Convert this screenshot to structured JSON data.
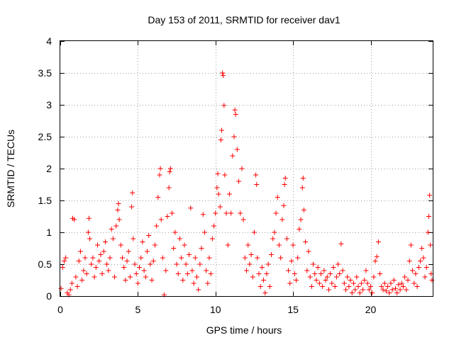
{
  "chart_data": {
    "type": "scatter",
    "title": "Day 153 of 2011, SRMTID for receiver dav1",
    "xlabel": "GPS time / hours",
    "ylabel": "SRMTID / TECUs",
    "xlim": [
      0,
      24
    ],
    "ylim": [
      0,
      4
    ],
    "xticks": [
      0,
      5,
      10,
      15,
      20
    ],
    "xtick_labels": [
      "0",
      "5",
      "10",
      "15",
      "20"
    ],
    "yticks": [
      0,
      0.5,
      1,
      1.5,
      2,
      2.5,
      3,
      3.5,
      4
    ],
    "ytick_labels": [
      "0",
      "0.5",
      "1",
      "1.5",
      "2",
      "2.5",
      "3",
      "3.5",
      "4"
    ],
    "grid": true,
    "marker": "+",
    "color": "#ff0000",
    "series": [
      {
        "name": "SRMTID",
        "points": [
          [
            0.05,
            0.12
          ],
          [
            0.15,
            0.45
          ],
          [
            0.25,
            0.55
          ],
          [
            0.35,
            0.6
          ],
          [
            0.45,
            0.05
          ],
          [
            0.55,
            0.02
          ],
          [
            0.65,
            0.1
          ],
          [
            0.75,
            0.2
          ],
          [
            0.8,
            1.22
          ],
          [
            0.9,
            1.2
          ],
          [
            1.0,
            0.3
          ],
          [
            1.1,
            0.15
          ],
          [
            1.2,
            0.55
          ],
          [
            1.3,
            0.7
          ],
          [
            1.4,
            0.25
          ],
          [
            1.5,
            0.4
          ],
          [
            1.6,
            0.6
          ],
          [
            1.7,
            0.35
          ],
          [
            1.8,
            1.0
          ],
          [
            1.85,
            1.22
          ],
          [
            1.9,
            0.9
          ],
          [
            2.0,
            0.5
          ],
          [
            2.1,
            0.6
          ],
          [
            2.2,
            0.3
          ],
          [
            2.3,
            0.45
          ],
          [
            2.4,
            0.8
          ],
          [
            2.5,
            0.55
          ],
          [
            2.6,
            0.65
          ],
          [
            2.7,
            0.35
          ],
          [
            2.8,
            0.7
          ],
          [
            2.9,
            0.85
          ],
          [
            3.0,
            0.5
          ],
          [
            3.1,
            0.4
          ],
          [
            3.2,
            0.6
          ],
          [
            3.3,
            1.05
          ],
          [
            3.4,
            0.9
          ],
          [
            3.5,
            0.3
          ],
          [
            3.6,
            1.1
          ],
          [
            3.7,
            1.35
          ],
          [
            3.75,
            1.45
          ],
          [
            3.8,
            1.2
          ],
          [
            3.9,
            0.8
          ],
          [
            4.0,
            0.6
          ],
          [
            4.1,
            0.45
          ],
          [
            4.2,
            0.25
          ],
          [
            4.3,
            0.55
          ],
          [
            4.4,
            0.7
          ],
          [
            4.5,
            0.3
          ],
          [
            4.6,
            1.4
          ],
          [
            4.65,
            1.62
          ],
          [
            4.7,
            0.9
          ],
          [
            4.8,
            0.5
          ],
          [
            4.9,
            0.35
          ],
          [
            5.0,
            0.2
          ],
          [
            5.1,
            0.45
          ],
          [
            5.2,
            0.6
          ],
          [
            5.3,
            0.85
          ],
          [
            5.4,
            0.4
          ],
          [
            5.5,
            0.3
          ],
          [
            5.6,
            0.7
          ],
          [
            5.7,
            0.95
          ],
          [
            5.8,
            0.5
          ],
          [
            5.9,
            0.25
          ],
          [
            6.0,
            0.55
          ],
          [
            6.1,
            0.8
          ],
          [
            6.2,
            1.1
          ],
          [
            6.3,
            1.55
          ],
          [
            6.4,
            1.9
          ],
          [
            6.45,
            2.0
          ],
          [
            6.5,
            1.2
          ],
          [
            6.6,
            0.6
          ],
          [
            6.7,
            0.02
          ],
          [
            6.8,
            0.4
          ],
          [
            6.9,
            1.25
          ],
          [
            7.0,
            1.7
          ],
          [
            7.05,
            1.95
          ],
          [
            7.1,
            2.0
          ],
          [
            7.2,
            1.3
          ],
          [
            7.3,
            0.75
          ],
          [
            7.4,
            1.0
          ],
          [
            7.5,
            0.5
          ],
          [
            7.6,
            0.35
          ],
          [
            7.7,
            0.9
          ],
          [
            7.8,
            0.6
          ],
          [
            7.9,
            0.25
          ],
          [
            8.0,
            0.8
          ],
          [
            8.1,
            0.5
          ],
          [
            8.2,
            0.35
          ],
          [
            8.3,
            0.65
          ],
          [
            8.4,
            1.38
          ],
          [
            8.5,
            0.4
          ],
          [
            8.6,
            0.2
          ],
          [
            8.7,
            0.6
          ],
          [
            8.8,
            0.3
          ],
          [
            8.9,
            0.1
          ],
          [
            9.0,
            0.5
          ],
          [
            9.1,
            0.75
          ],
          [
            9.2,
            1.28
          ],
          [
            9.3,
            1.0
          ],
          [
            9.4,
            0.4
          ],
          [
            9.5,
            0.2
          ],
          [
            9.6,
            0.6
          ],
          [
            9.7,
            0.35
          ],
          [
            9.8,
            0.9
          ],
          [
            9.9,
            1.1
          ],
          [
            10.0,
            1.3
          ],
          [
            10.1,
            1.7
          ],
          [
            10.15,
            1.92
          ],
          [
            10.2,
            1.6
          ],
          [
            10.3,
            1.4
          ],
          [
            10.35,
            2.45
          ],
          [
            10.4,
            2.6
          ],
          [
            10.45,
            3.5
          ],
          [
            10.5,
            3.46
          ],
          [
            10.55,
            2.99
          ],
          [
            10.6,
            1.9
          ],
          [
            10.7,
            1.3
          ],
          [
            10.8,
            0.8
          ],
          [
            10.9,
            1.6
          ],
          [
            11.0,
            1.3
          ],
          [
            11.1,
            2.2
          ],
          [
            11.2,
            2.5
          ],
          [
            11.25,
            2.92
          ],
          [
            11.3,
            2.85
          ],
          [
            11.4,
            2.3
          ],
          [
            11.5,
            1.8
          ],
          [
            11.6,
            1.3
          ],
          [
            11.7,
            2.0
          ],
          [
            11.8,
            1.2
          ],
          [
            11.9,
            0.6
          ],
          [
            12.0,
            0.4
          ],
          [
            12.1,
            0.8
          ],
          [
            12.2,
            0.5
          ],
          [
            12.3,
            0.65
          ],
          [
            12.4,
            0.3
          ],
          [
            12.5,
            1.0
          ],
          [
            12.6,
            1.9
          ],
          [
            12.65,
            1.75
          ],
          [
            12.7,
            0.6
          ],
          [
            12.8,
            0.35
          ],
          [
            12.9,
            0.15
          ],
          [
            13.0,
            0.45
          ],
          [
            13.1,
            0.25
          ],
          [
            13.2,
            0.05
          ],
          [
            13.3,
            0.35
          ],
          [
            13.4,
            0.5
          ],
          [
            13.5,
            0.15
          ],
          [
            13.6,
            0.65
          ],
          [
            13.7,
            0.9
          ],
          [
            13.8,
            1.0
          ],
          [
            13.9,
            1.3
          ],
          [
            14.0,
            1.55
          ],
          [
            14.1,
            0.8
          ],
          [
            14.2,
            0.6
          ],
          [
            14.3,
            1.2
          ],
          [
            14.4,
            1.42
          ],
          [
            14.45,
            1.75
          ],
          [
            14.5,
            1.85
          ],
          [
            14.6,
            0.9
          ],
          [
            14.7,
            0.4
          ],
          [
            14.8,
            0.2
          ],
          [
            14.9,
            0.55
          ],
          [
            15.0,
            0.8
          ],
          [
            15.1,
            0.35
          ],
          [
            15.2,
            0.25
          ],
          [
            15.3,
            0.6
          ],
          [
            15.4,
            1.05
          ],
          [
            15.5,
            1.2
          ],
          [
            15.6,
            1.7
          ],
          [
            15.65,
            1.85
          ],
          [
            15.7,
            1.35
          ],
          [
            15.8,
            0.85
          ],
          [
            15.9,
            0.4
          ],
          [
            16.0,
            0.7
          ],
          [
            16.1,
            0.3
          ],
          [
            16.2,
            0.15
          ],
          [
            16.3,
            0.5
          ],
          [
            16.4,
            0.35
          ],
          [
            16.5,
            0.25
          ],
          [
            16.6,
            0.45
          ],
          [
            16.7,
            0.2
          ],
          [
            16.8,
            0.35
          ],
          [
            16.9,
            0.15
          ],
          [
            17.0,
            0.4
          ],
          [
            17.1,
            0.25
          ],
          [
            17.2,
            0.3
          ],
          [
            17.3,
            0.1
          ],
          [
            17.4,
            0.35
          ],
          [
            17.5,
            0.2
          ],
          [
            17.6,
            0.45
          ],
          [
            17.7,
            0.15
          ],
          [
            17.8,
            0.3
          ],
          [
            17.9,
            0.5
          ],
          [
            18.0,
            0.35
          ],
          [
            18.1,
            0.82
          ],
          [
            18.2,
            0.4
          ],
          [
            18.3,
            0.2
          ],
          [
            18.4,
            0.1
          ],
          [
            18.5,
            0.3
          ],
          [
            18.6,
            0.15
          ],
          [
            18.7,
            0.25
          ],
          [
            18.8,
            0.05
          ],
          [
            18.9,
            0.2
          ],
          [
            19.0,
            0.1
          ],
          [
            19.1,
            0.3
          ],
          [
            19.2,
            0.15
          ],
          [
            19.3,
            0.05
          ],
          [
            19.4,
            0.2
          ],
          [
            19.5,
            0.1
          ],
          [
            19.6,
            0.25
          ],
          [
            19.7,
            0.4
          ],
          [
            19.8,
            0.2
          ],
          [
            19.9,
            0.1
          ],
          [
            20.0,
            0.15
          ],
          [
            20.1,
            0.05
          ],
          [
            20.2,
            0.3
          ],
          [
            20.3,
            0.55
          ],
          [
            20.4,
            0.62
          ],
          [
            20.5,
            0.85
          ],
          [
            20.6,
            0.35
          ],
          [
            20.7,
            0.15
          ],
          [
            20.8,
            0.1
          ],
          [
            20.9,
            0.2
          ],
          [
            21.0,
            0.08
          ],
          [
            21.1,
            0.15
          ],
          [
            21.2,
            0.05
          ],
          [
            21.3,
            0.2
          ],
          [
            21.4,
            0.1
          ],
          [
            21.5,
            0.25
          ],
          [
            21.6,
            0.12
          ],
          [
            21.7,
            0.05
          ],
          [
            21.8,
            0.18
          ],
          [
            21.9,
            0.1
          ],
          [
            22.0,
            0.2
          ],
          [
            22.1,
            0.15
          ],
          [
            22.2,
            0.3
          ],
          [
            22.3,
            0.1
          ],
          [
            22.4,
            0.25
          ],
          [
            22.5,
            0.55
          ],
          [
            22.6,
            0.8
          ],
          [
            22.7,
            0.4
          ],
          [
            22.8,
            0.2
          ],
          [
            22.9,
            0.35
          ],
          [
            23.0,
            0.15
          ],
          [
            23.1,
            0.45
          ],
          [
            23.2,
            0.55
          ],
          [
            23.3,
            0.75
          ],
          [
            23.4,
            0.6
          ],
          [
            23.5,
            0.3
          ],
          [
            23.6,
            0.45
          ],
          [
            23.7,
            1.0
          ],
          [
            23.75,
            1.25
          ],
          [
            23.8,
            1.58
          ],
          [
            23.85,
            0.8
          ],
          [
            23.9,
            0.35
          ],
          [
            23.95,
            0.25
          ]
        ]
      }
    ]
  }
}
